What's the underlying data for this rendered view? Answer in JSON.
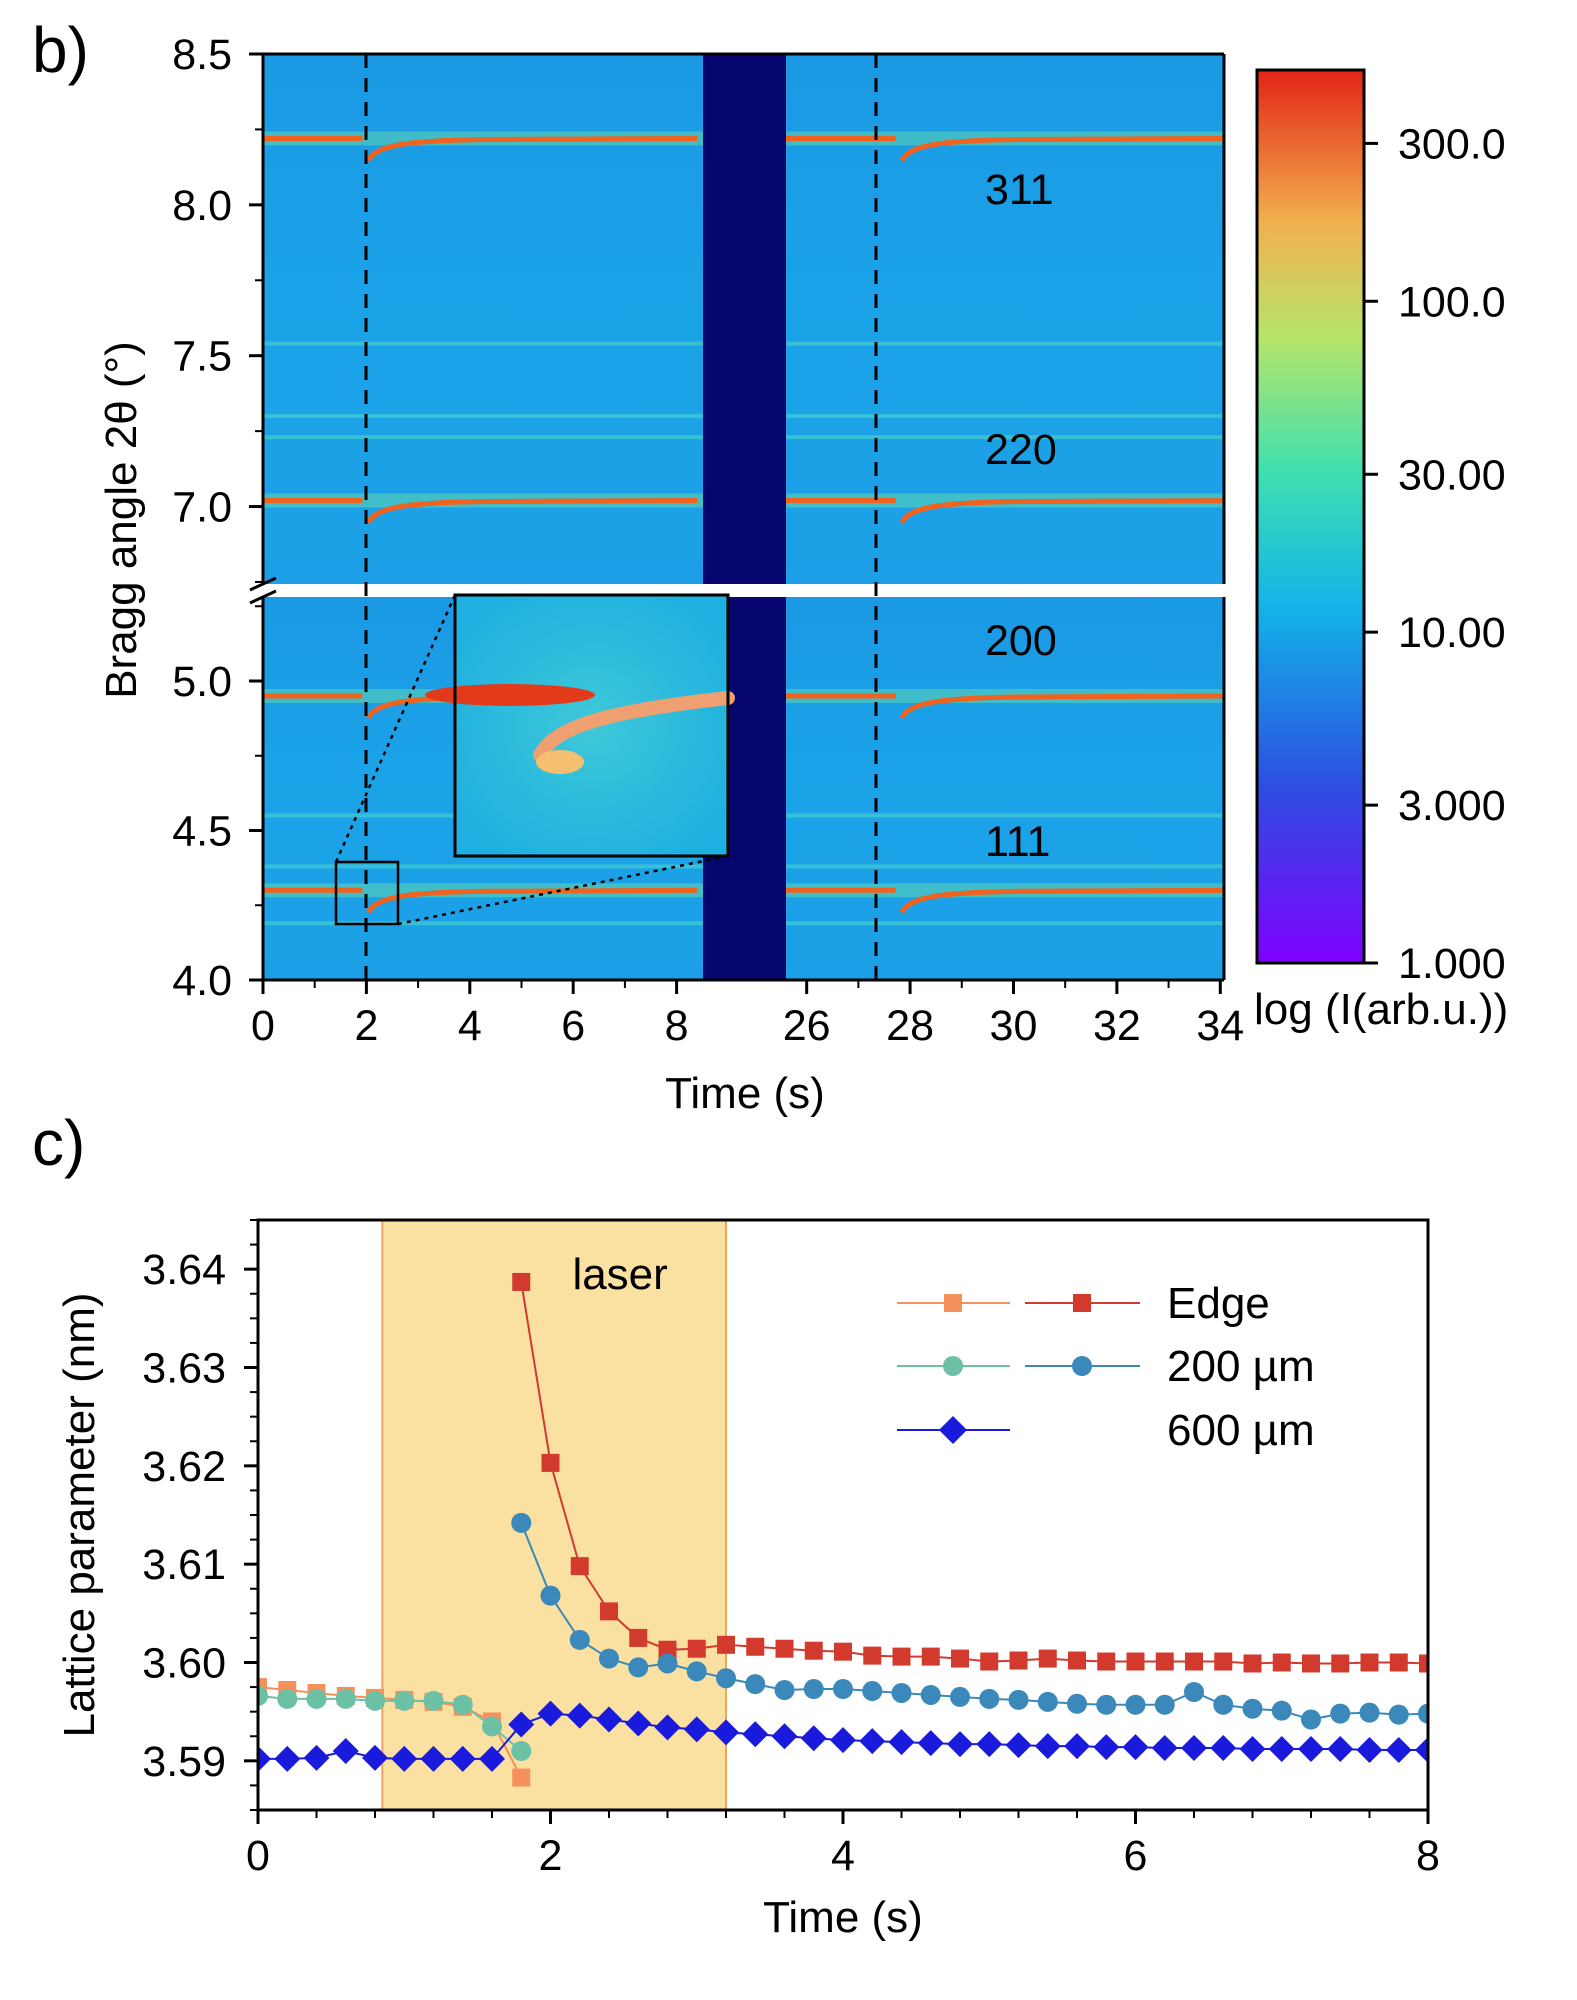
{
  "panel_b": {
    "label": "b)",
    "xlabel": "Time (s)",
    "ylabel": "Bragg angle 2θ (°)",
    "colorbar_label": "log (I(arb.u.))",
    "peak_labels": [
      "311",
      "220",
      "200",
      "111"
    ]
  },
  "panel_c": {
    "label": "c)",
    "xlabel": "Time (s)",
    "ylabel": "Lattice parameter (nm)",
    "annotation": "laser",
    "legend": [
      "Edge",
      "200 µm",
      "600 µm"
    ]
  },
  "colors": {
    "edge_before": "#f4915c",
    "edge_after": "#d23a2e",
    "mid_before": "#6cc0a6",
    "mid_after": "#3b88ba",
    "far": "#1a1adc",
    "laser_band": "#fae1a2",
    "laser_edge": "#f2a35a",
    "heatmap_bg": "#1a9ee6",
    "gap_band": "#07066e"
  },
  "chart_data": [
    {
      "type": "heatmap",
      "title": "",
      "xlabel": "Time (s)",
      "ylabel": "Bragg angle 2θ (°)",
      "x_segments": [
        [
          0,
          8.4
        ],
        [
          25.6,
          34.4
        ]
      ],
      "x_tick_labels": [
        "0",
        "2",
        "4",
        "6",
        "8",
        "26",
        "28",
        "30",
        "32",
        "34"
      ],
      "y_segments": [
        [
          4.0,
          5.25
        ],
        [
          6.75,
          8.5
        ]
      ],
      "y_tick_labels": [
        "4.0",
        "4.5",
        "5.0",
        "7.0",
        "7.5",
        "8.0",
        "8.5"
      ],
      "laser_on_times": [
        2,
        27.8
      ],
      "peaks": [
        {
          "hkl": "311",
          "two_theta": 8.22
        },
        {
          "hkl": "220",
          "two_theta": 7.02
        },
        {
          "hkl": "200",
          "two_theta": 4.95
        },
        {
          "hkl": "111",
          "two_theta": 4.3
        }
      ],
      "weak_lines": [
        7.54,
        7.3,
        7.23,
        4.55,
        4.38,
        4.19
      ],
      "colorbar": {
        "label": "log (I(arb.u.))",
        "scale": "log",
        "range": [
          1,
          500
        ],
        "tick_labels": [
          "1.000",
          "3.000",
          "10.00",
          "30.00",
          "100.0",
          "300.0"
        ]
      }
    },
    {
      "type": "line",
      "title": "",
      "xlabel": "Time (s)",
      "ylabel": "Lattice parameter (nm)",
      "xlim": [
        0,
        8
      ],
      "ylim": [
        3.585,
        3.645
      ],
      "x_tick_labels": [
        "0",
        "2",
        "4",
        "6",
        "8"
      ],
      "y_tick_labels": [
        "3.59",
        "3.60",
        "3.61",
        "3.62",
        "3.63",
        "3.64"
      ],
      "shaded_region": {
        "x": [
          0.85,
          3.2
        ],
        "label": "laser"
      },
      "legend_position": "top-right",
      "series": [
        {
          "name": "Edge",
          "marker": "square",
          "color_key": "edge_before",
          "x": [
            0,
            0.2,
            0.4,
            0.6,
            0.8,
            1.0,
            1.2,
            1.4,
            1.6,
            1.8
          ],
          "y": [
            3.5975,
            3.5972,
            3.5969,
            3.5966,
            3.5964,
            3.5962,
            3.596,
            3.5955,
            3.594,
            3.5883
          ]
        },
        {
          "name": "Edge",
          "marker": "square",
          "color_key": "edge_after",
          "x": [
            1.8,
            2.0,
            2.2,
            2.4,
            2.6,
            2.8,
            3.0,
            3.2,
            3.4,
            3.6,
            3.8,
            4.0,
            4.2,
            4.4,
            4.6,
            4.8,
            5.0,
            5.2,
            5.4,
            5.6,
            5.8,
            6.0,
            6.2,
            6.4,
            6.6,
            6.8,
            7.0,
            7.2,
            7.4,
            7.6,
            7.8,
            8.0
          ],
          "y": [
            3.6387,
            3.6203,
            3.6098,
            3.6052,
            3.6025,
            3.6013,
            3.6014,
            3.6018,
            3.6016,
            3.6014,
            3.6012,
            3.6011,
            3.6007,
            3.6006,
            3.6006,
            3.6004,
            3.6001,
            3.6002,
            3.6004,
            3.6002,
            3.6001,
            3.6001,
            3.6001,
            3.6001,
            3.6001,
            3.5999,
            3.6,
            3.5999,
            3.5999,
            3.6,
            3.6,
            3.5999
          ]
        },
        {
          "name": "200 µm",
          "marker": "circle",
          "color_key": "mid_before",
          "x": [
            0,
            0.2,
            0.4,
            0.6,
            0.8,
            1.0,
            1.2,
            1.4,
            1.6,
            1.8
          ],
          "y": [
            3.5966,
            3.5963,
            3.5963,
            3.5963,
            3.5961,
            3.5961,
            3.5961,
            3.5957,
            3.5935,
            3.591
          ]
        },
        {
          "name": "200 µm",
          "marker": "circle",
          "color_key": "mid_after",
          "x": [
            1.8,
            2.0,
            2.2,
            2.4,
            2.6,
            2.8,
            3.0,
            3.2,
            3.4,
            3.6,
            3.8,
            4.0,
            4.2,
            4.4,
            4.6,
            4.8,
            5.0,
            5.2,
            5.4,
            5.6,
            5.8,
            6.0,
            6.2,
            6.4,
            6.6,
            6.8,
            7.0,
            7.2,
            7.4,
            7.6,
            7.8,
            8.0
          ],
          "y": [
            3.6142,
            3.6068,
            3.6023,
            3.6004,
            3.5995,
            3.5999,
            3.5991,
            3.5984,
            3.5978,
            3.5972,
            3.5973,
            3.5973,
            3.5971,
            3.5969,
            3.5967,
            3.5965,
            3.5963,
            3.5962,
            3.596,
            3.5958,
            3.5957,
            3.5957,
            3.5957,
            3.597,
            3.5957,
            3.5953,
            3.5951,
            3.5942,
            3.5948,
            3.5949,
            3.5947,
            3.5948
          ]
        },
        {
          "name": "600 µm",
          "marker": "diamond",
          "color_key": "far",
          "x": [
            0,
            0.2,
            0.4,
            0.6,
            0.8,
            1.0,
            1.2,
            1.4,
            1.6,
            1.8,
            2.0,
            2.2,
            2.4,
            2.6,
            2.8,
            3.0,
            3.2,
            3.4,
            3.6,
            3.8,
            4.0,
            4.2,
            4.4,
            4.6,
            4.8,
            5.0,
            5.2,
            5.4,
            5.6,
            5.8,
            6.0,
            6.2,
            6.4,
            6.6,
            6.8,
            7.0,
            7.2,
            7.4,
            7.6,
            7.8,
            8.0
          ],
          "y": [
            3.5902,
            3.5902,
            3.5903,
            3.591,
            3.5903,
            3.5902,
            3.5902,
            3.5902,
            3.5902,
            3.5937,
            3.5948,
            3.5946,
            3.5942,
            3.5938,
            3.5934,
            3.5932,
            3.5929,
            3.5927,
            3.5925,
            3.5923,
            3.5921,
            3.592,
            3.5919,
            3.5918,
            3.5917,
            3.5917,
            3.5916,
            3.5915,
            3.5915,
            3.5914,
            3.5914,
            3.5913,
            3.5913,
            3.5913,
            3.5912,
            3.5912,
            3.5912,
            3.5912,
            3.5911,
            3.5911,
            3.5911
          ]
        }
      ]
    }
  ]
}
